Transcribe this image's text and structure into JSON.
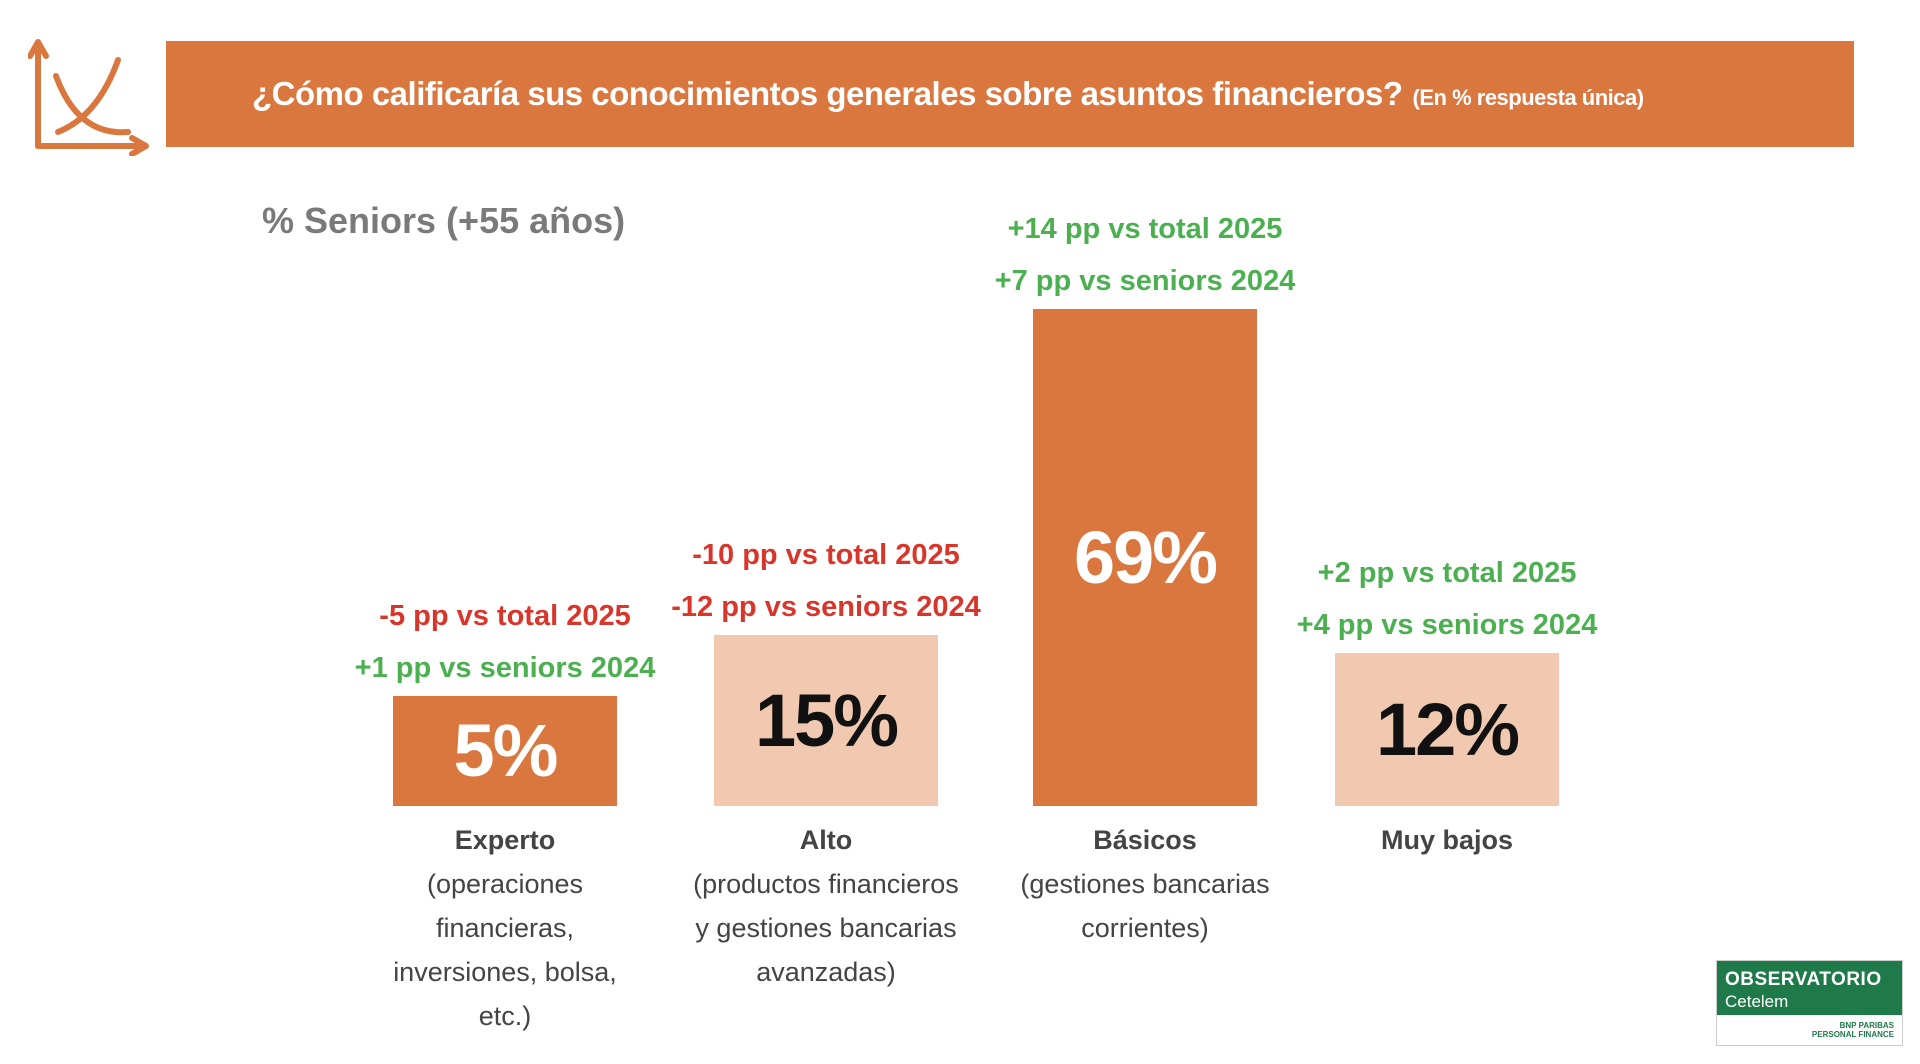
{
  "chart_data": {
    "type": "bar",
    "title": "¿Cómo calificaría sus conocimientos generales sobre asuntos financieros?",
    "title_note": "(En % respuesta única)",
    "subtitle": "% Seniors (+55 años)",
    "categories": [
      "Experto",
      "Alto",
      "Básicos",
      "Muy bajos"
    ],
    "category_notes": [
      "(operaciones financieras, inversiones, bolsa, etc.)",
      "(productos financieros y gestiones bancarias avanzadas)",
      "(gestiones bancarias corrientes)",
      null
    ],
    "values": [
      5,
      15,
      69,
      12
    ],
    "value_labels": [
      "5%",
      "15%",
      "69%",
      "12%"
    ],
    "colors": [
      "#d9773f",
      "#f0c9b0",
      "#d9773f",
      "#f0c9b0"
    ],
    "value_label_colors": [
      "#ffffff",
      "#111111",
      "#ffffff",
      "#111111"
    ],
    "annotations": [
      [
        {
          "text": "-5 pp vs total 2025",
          "color": "#d9362b"
        },
        {
          "text": "+1 pp vs seniors 2024",
          "color": "#4caf50"
        }
      ],
      [
        {
          "text": "-10 pp vs total 2025",
          "color": "#d9362b"
        },
        {
          "text": "-12 pp vs seniors 2024",
          "color": "#d9362b"
        }
      ],
      [
        {
          "text": "+14 pp vs total 2025",
          "color": "#4caf50"
        },
        {
          "text": "+7 pp vs seniors 2024",
          "color": "#4caf50"
        }
      ],
      [
        {
          "text": "+2 pp vs total 2025",
          "color": "#4caf50"
        },
        {
          "text": "+4 pp vs seniors 2024",
          "color": "#4caf50"
        }
      ]
    ]
  },
  "logo": {
    "name": "OBSERVATORIO",
    "brand": "Cetelem",
    "group": "BNP PARIBAS",
    "group_sub": "PERSONAL FINANCE"
  }
}
